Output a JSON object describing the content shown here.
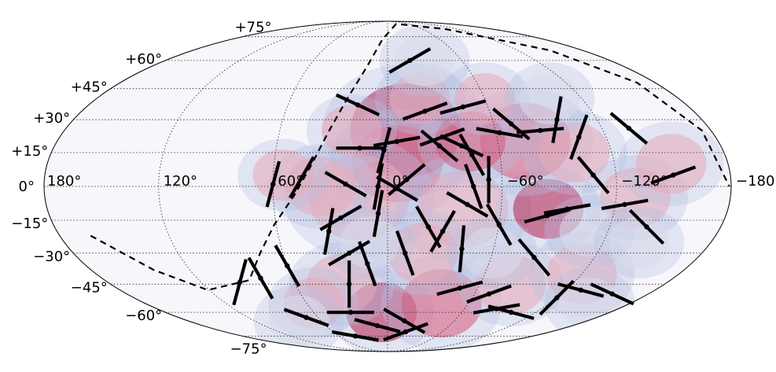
{
  "chart_data": {
    "type": "scatter",
    "projection": "mollweide",
    "grid": true,
    "background_color": "#f7f7fb",
    "blob_colors": [
      "#c9d0e8",
      "#b8c0e3",
      "#d8dceb",
      "#e8a9b8",
      "#d95a7c",
      "#b5204f"
    ],
    "segment_color": "#000000",
    "lat_tick_labels": [
      "+75°",
      "+60°",
      "+45°",
      "+30°",
      "+15°",
      "0°",
      "−15°",
      "−30°",
      "−45°",
      "−60°",
      "−75°"
    ],
    "lon_tick_labels": [
      "180°",
      "120°",
      "60°",
      "0°",
      "−60°",
      "−120°",
      "−180°"
    ],
    "lat_ticks": [
      75,
      60,
      45,
      30,
      15,
      0,
      -15,
      -30,
      -45,
      -60,
      -75
    ],
    "lon_ticks": [
      180,
      120,
      60,
      0,
      -60,
      -120,
      -180
    ],
    "dashed_boundary": [
      [
        163,
        -22
      ],
      [
        142,
        -38
      ],
      [
        121,
        -48
      ],
      [
        88,
        -43
      ],
      [
        73,
        -30
      ],
      [
        61,
        -17
      ],
      [
        49,
        -4
      ],
      [
        40,
        10
      ],
      [
        33,
        24
      ],
      [
        25,
        40
      ],
      [
        16,
        56
      ],
      [
        6,
        73
      ],
      [
        -25,
        86
      ],
      [
        -100,
        81
      ],
      [
        -150,
        66
      ],
      [
        -168,
        48
      ],
      [
        -175,
        25
      ],
      [
        -179,
        0
      ]
    ],
    "density_blobs": [
      {
        "lon": -10,
        "lat": 25,
        "r": 22,
        "level": 5
      },
      {
        "lon": -5,
        "lat": 10,
        "r": 18,
        "level": 4
      },
      {
        "lon": 15,
        "lat": -5,
        "r": 20,
        "level": 3
      },
      {
        "lon": -40,
        "lat": -10,
        "r": 18,
        "level": 3
      },
      {
        "lon": -85,
        "lat": -10,
        "r": 14,
        "level": 5
      },
      {
        "lon": -75,
        "lat": 20,
        "r": 18,
        "level": 4
      },
      {
        "lon": -45,
        "lat": 20,
        "r": 14,
        "level": 4
      },
      {
        "lon": -100,
        "lat": 15,
        "r": 14,
        "level": 3
      },
      {
        "lon": -130,
        "lat": -5,
        "r": 14,
        "level": 3
      },
      {
        "lon": -150,
        "lat": 10,
        "r": 14,
        "level": 3
      },
      {
        "lon": 5,
        "lat": -60,
        "r": 14,
        "level": 5
      },
      {
        "lon": -40,
        "lat": -55,
        "r": 16,
        "level": 4
      },
      {
        "lon": -80,
        "lat": -45,
        "r": 14,
        "level": 3
      },
      {
        "lon": -120,
        "lat": -40,
        "r": 14,
        "level": 3
      },
      {
        "lon": 30,
        "lat": -45,
        "r": 14,
        "level": 3
      },
      {
        "lon": 55,
        "lat": -55,
        "r": 12,
        "level": 3
      },
      {
        "lon": 35,
        "lat": 0,
        "r": 14,
        "level": 3
      },
      {
        "lon": 55,
        "lat": 5,
        "r": 12,
        "level": 3
      },
      {
        "lon": 20,
        "lat": 25,
        "r": 12,
        "level": 3
      },
      {
        "lon": -20,
        "lat": 40,
        "r": 12,
        "level": 3
      },
      {
        "lon": -60,
        "lat": 40,
        "r": 12,
        "level": 3
      },
      {
        "lon": -20,
        "lat": -30,
        "r": 14,
        "level": 3
      },
      {
        "lon": 10,
        "lat": -25,
        "r": 12,
        "level": 2
      },
      {
        "lon": -60,
        "lat": -30,
        "r": 12,
        "level": 2
      },
      {
        "lon": -110,
        "lat": -20,
        "r": 12,
        "level": 2
      },
      {
        "lon": -140,
        "lat": -25,
        "r": 12,
        "level": 2
      },
      {
        "lon": 80,
        "lat": -65,
        "r": 12,
        "level": 2
      },
      {
        "lon": -150,
        "lat": -55,
        "r": 12,
        "level": 2
      },
      {
        "lon": -100,
        "lat": 40,
        "r": 12,
        "level": 2
      },
      {
        "lon": -30,
        "lat": 60,
        "r": 12,
        "level": 2
      }
    ],
    "segments": [
      {
        "lon": -18,
        "lat": 60,
        "angle": 30
      },
      {
        "lon": 18,
        "lat": 37,
        "angle": -25
      },
      {
        "lon": -22,
        "lat": 34,
        "angle": 20
      },
      {
        "lon": -45,
        "lat": 36,
        "angle": 15
      },
      {
        "lon": -70,
        "lat": 28,
        "angle": -40
      },
      {
        "lon": -97,
        "lat": 30,
        "angle": 80
      },
      {
        "lon": -85,
        "lat": 25,
        "angle": 5
      },
      {
        "lon": -105,
        "lat": 22,
        "angle": 70
      },
      {
        "lon": -135,
        "lat": 26,
        "angle": -40
      },
      {
        "lon": -5,
        "lat": 20,
        "angle": 10
      },
      {
        "lon": -28,
        "lat": 18,
        "angle": -40
      },
      {
        "lon": -30,
        "lat": 22,
        "angle": 20
      },
      {
        "lon": -40,
        "lat": 18,
        "angle": -25
      },
      {
        "lon": -45,
        "lat": 14,
        "angle": -60
      },
      {
        "lon": 15,
        "lat": 17,
        "angle": 0
      },
      {
        "lon": 2,
        "lat": 16,
        "angle": 75
      },
      {
        "lon": -62,
        "lat": 24,
        "angle": -10
      },
      {
        "lon": -108,
        "lat": 5,
        "angle": -50
      },
      {
        "lon": -150,
        "lat": 5,
        "angle": 20
      },
      {
        "lon": -53,
        "lat": 3,
        "angle": 90
      },
      {
        "lon": -45,
        "lat": 0,
        "angle": -70
      },
      {
        "lon": 45,
        "lat": 4,
        "angle": 60
      },
      {
        "lon": 60,
        "lat": 1,
        "angle": 75
      },
      {
        "lon": 22,
        "lat": 1,
        "angle": -30
      },
      {
        "lon": -10,
        "lat": 3,
        "angle": 40
      },
      {
        "lon": 5,
        "lat": 0,
        "angle": 80
      },
      {
        "lon": -5,
        "lat": -1,
        "angle": -30
      },
      {
        "lon": -42,
        "lat": -8,
        "angle": -30
      },
      {
        "lon": -85,
        "lat": -13,
        "angle": 15
      },
      {
        "lon": -95,
        "lat": -10,
        "angle": 10
      },
      {
        "lon": -125,
        "lat": -8,
        "angle": 10
      },
      {
        "lon": -140,
        "lat": -18,
        "angle": -45
      },
      {
        "lon": -22,
        "lat": -18,
        "angle": -60
      },
      {
        "lon": -30,
        "lat": -20,
        "angle": 60
      },
      {
        "lon": -60,
        "lat": -17,
        "angle": -60
      },
      {
        "lon": 5,
        "lat": -12,
        "angle": 80
      },
      {
        "lon": 25,
        "lat": -14,
        "angle": 30
      },
      {
        "lon": 32,
        "lat": -20,
        "angle": 80
      },
      {
        "lon": -10,
        "lat": -30,
        "angle": -70
      },
      {
        "lon": -42,
        "lat": -28,
        "angle": 85
      },
      {
        "lon": -85,
        "lat": -32,
        "angle": -50
      },
      {
        "lon": 12,
        "lat": -35,
        "angle": -70
      },
      {
        "lon": 22,
        "lat": -30,
        "angle": 30
      },
      {
        "lon": 25,
        "lat": -45,
        "angle": 90
      },
      {
        "lon": 60,
        "lat": -36,
        "angle": -60
      },
      {
        "lon": 80,
        "lat": -42,
        "angle": -60
      },
      {
        "lon": 95,
        "lat": -44,
        "angle": 75
      },
      {
        "lon": -48,
        "lat": -47,
        "angle": 15
      },
      {
        "lon": -70,
        "lat": -50,
        "angle": 20
      },
      {
        "lon": -130,
        "lat": -48,
        "angle": -15
      },
      {
        "lon": -120,
        "lat": -52,
        "angle": 45
      },
      {
        "lon": -155,
        "lat": -50,
        "angle": -25
      },
      {
        "lon": 70,
        "lat": -63,
        "angle": -20
      },
      {
        "lon": 30,
        "lat": -60,
        "angle": 0
      },
      {
        "lon": 10,
        "lat": -68,
        "angle": -15
      },
      {
        "lon": -15,
        "lat": -65,
        "angle": -30
      },
      {
        "lon": -85,
        "lat": -58,
        "angle": 10
      },
      {
        "lon": -100,
        "lat": -60,
        "angle": -15
      },
      {
        "lon": 40,
        "lat": -75,
        "angle": -10
      },
      {
        "lon": -20,
        "lat": -72,
        "angle": 20
      }
    ]
  }
}
